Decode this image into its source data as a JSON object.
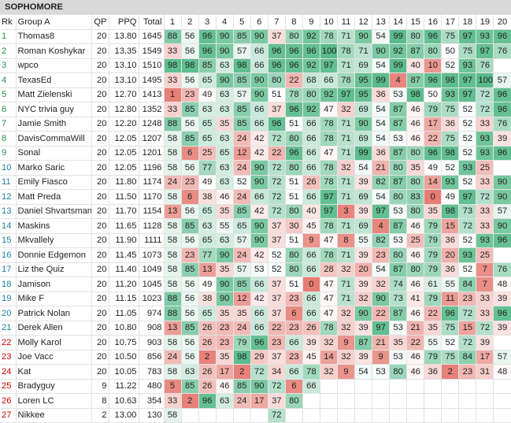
{
  "title": "SOPHOMORE",
  "headers": {
    "rk": "Rk",
    "group": "Group A",
    "qp": "QP",
    "ppq": "PPQ",
    "total": "Total",
    "questions": [
      "1",
      "2",
      "3",
      "4",
      "5",
      "6",
      "7",
      "8",
      "9",
      "10",
      "11",
      "12",
      "13",
      "14",
      "15",
      "16",
      "17",
      "18",
      "19",
      "20"
    ]
  },
  "rows": [
    {
      "rk": "1",
      "name": "Thomas8",
      "qp": "20",
      "ppq": "13.80",
      "total": "1645",
      "s": [
        "88",
        "56",
        "96",
        "90",
        "85",
        "90",
        "37",
        "80",
        "92",
        "78",
        "71",
        "90",
        "54",
        "99",
        "80",
        "96",
        "75",
        "97",
        "93",
        "96"
      ]
    },
    {
      "rk": "2",
      "name": "Roman Koshykar",
      "qp": "20",
      "ppq": "13.35",
      "total": "1549",
      "s": [
        "33",
        "56",
        "96",
        "90",
        "57",
        "66",
        "96",
        "96",
        "96",
        "100",
        "78",
        "71",
        "90",
        "92",
        "87",
        "80",
        "50",
        "75",
        "97",
        "76"
      ]
    },
    {
      "rk": "3",
      "name": "wpco",
      "qp": "20",
      "ppq": "13.10",
      "total": "1510",
      "s": [
        "98",
        "98",
        "85",
        "63",
        "98",
        "66",
        "96",
        "96",
        "92",
        "97",
        "71",
        "69",
        "54",
        "99",
        "40",
        "10",
        "52",
        "93",
        "76",
        ""
      ]
    },
    {
      "rk": "4",
      "name": "TexasEd",
      "qp": "20",
      "ppq": "13.10",
      "total": "1495",
      "s": [
        "33",
        "56",
        "65",
        "90",
        "85",
        "90",
        "80",
        "22",
        "68",
        "66",
        "78",
        "95",
        "99",
        "4",
        "87",
        "96",
        "98",
        "97",
        "100",
        "57"
      ]
    },
    {
      "rk": "5",
      "name": "Matt Zielenski",
      "qp": "20",
      "ppq": "12.70",
      "total": "1413",
      "s": [
        "1",
        "23",
        "49",
        "63",
        "57",
        "90",
        "51",
        "78",
        "80",
        "92",
        "97",
        "95",
        "36",
        "53",
        "98",
        "50",
        "93",
        "97",
        "72",
        "96"
      ]
    },
    {
      "rk": "6",
      "name": "NYC trivia guy",
      "qp": "20",
      "ppq": "12.80",
      "total": "1352",
      "s": [
        "33",
        "85",
        "63",
        "63",
        "85",
        "66",
        "37",
        "96",
        "92",
        "47",
        "32",
        "69",
        "54",
        "87",
        "46",
        "79",
        "75",
        "52",
        "72",
        "96"
      ]
    },
    {
      "rk": "7",
      "name": "Jamie Smith",
      "qp": "20",
      "ppq": "12.20",
      "total": "1248",
      "s": [
        "88",
        "56",
        "65",
        "35",
        "85",
        "66",
        "96",
        "51",
        "66",
        "78",
        "71",
        "90",
        "54",
        "87",
        "46",
        "17",
        "36",
        "52",
        "33",
        "76"
      ]
    },
    {
      "rk": "8",
      "name": "DavisCommaWill",
      "qp": "20",
      "ppq": "12.05",
      "total": "1207",
      "s": [
        "58",
        "85",
        "65",
        "63",
        "24",
        "42",
        "72",
        "80",
        "66",
        "78",
        "71",
        "69",
        "54",
        "53",
        "46",
        "22",
        "75",
        "52",
        "93",
        "39"
      ]
    },
    {
      "rk": "9",
      "name": "Sonal",
      "qp": "20",
      "ppq": "12.05",
      "total": "1201",
      "s": [
        "58",
        "6",
        "25",
        "65",
        "12",
        "42",
        "22",
        "96",
        "66",
        "47",
        "71",
        "99",
        "36",
        "87",
        "80",
        "96",
        "98",
        "52",
        "93",
        "96"
      ]
    },
    {
      "rk": "10",
      "name": "Marko Saric",
      "qp": "20",
      "ppq": "12.05",
      "total": "1196",
      "s": [
        "58",
        "56",
        "77",
        "63",
        "24",
        "90",
        "72",
        "80",
        "66",
        "78",
        "32",
        "54",
        "21",
        "80",
        "35",
        "49",
        "52",
        "93",
        "25",
        ""
      ]
    },
    {
      "rk": "11",
      "name": "Emily Fiasco",
      "qp": "20",
      "ppq": "11.80",
      "total": "1174",
      "s": [
        "24",
        "23",
        "49",
        "63",
        "52",
        "90",
        "72",
        "51",
        "26",
        "78",
        "71",
        "39",
        "82",
        "87",
        "80",
        "14",
        "93",
        "52",
        "33",
        "90"
      ]
    },
    {
      "rk": "12",
      "name": "Matt Preda",
      "qp": "20",
      "ppq": "11.50",
      "total": "1170",
      "s": [
        "58",
        "6",
        "38",
        "46",
        "24",
        "66",
        "72",
        "51",
        "66",
        "97",
        "71",
        "69",
        "54",
        "80",
        "83",
        "0",
        "49",
        "97",
        "72",
        "90"
      ]
    },
    {
      "rk": "13",
      "name": "Daniel Shvartsman",
      "qp": "20",
      "ppq": "11.70",
      "total": "1154",
      "s": [
        "13",
        "56",
        "65",
        "35",
        "85",
        "42",
        "72",
        "80",
        "40",
        "97",
        "3",
        "39",
        "97",
        "53",
        "80",
        "35",
        "98",
        "73",
        "33",
        "57"
      ]
    },
    {
      "rk": "14",
      "name": "Maskins",
      "qp": "20",
      "ppq": "11.65",
      "total": "1128",
      "s": [
        "58",
        "85",
        "63",
        "55",
        "65",
        "90",
        "37",
        "30",
        "45",
        "78",
        "71",
        "69",
        "4",
        "87",
        "46",
        "79",
        "15",
        "72",
        "33",
        "90"
      ]
    },
    {
      "rk": "15",
      "name": "Mkvallely",
      "qp": "20",
      "ppq": "11.90",
      "total": "1111",
      "s": [
        "58",
        "56",
        "65",
        "63",
        "57",
        "90",
        "37",
        "51",
        "9",
        "47",
        "8",
        "55",
        "82",
        "53",
        "25",
        "79",
        "36",
        "52",
        "93",
        "96"
      ]
    },
    {
      "rk": "16",
      "name": "Donnie Edgemon",
      "qp": "20",
      "ppq": "11.45",
      "total": "1073",
      "s": [
        "58",
        "23",
        "77",
        "90",
        "24",
        "42",
        "52",
        "80",
        "66",
        "78",
        "71",
        "39",
        "23",
        "80",
        "46",
        "79",
        "20",
        "93",
        "25",
        ""
      ]
    },
    {
      "rk": "17",
      "name": "Liz the Quiz",
      "qp": "20",
      "ppq": "11.40",
      "total": "1049",
      "s": [
        "58",
        "85",
        "13",
        "35",
        "57",
        "53",
        "52",
        "80",
        "66",
        "28",
        "32",
        "20",
        "54",
        "87",
        "80",
        "79",
        "36",
        "52",
        "7",
        "76"
      ]
    },
    {
      "rk": "18",
      "name": "Jamison",
      "qp": "20",
      "ppq": "11.20",
      "total": "1045",
      "s": [
        "58",
        "56",
        "49",
        "90",
        "85",
        "66",
        "37",
        "51",
        "0",
        "47",
        "71",
        "39",
        "32",
        "74",
        "46",
        "61",
        "55",
        "84",
        "7",
        "48"
      ]
    },
    {
      "rk": "19",
      "name": "Mike F",
      "qp": "20",
      "ppq": "11.15",
      "total": "1023",
      "s": [
        "88",
        "56",
        "38",
        "90",
        "12",
        "42",
        "37",
        "23",
        "66",
        "47",
        "71",
        "32",
        "90",
        "73",
        "41",
        "79",
        "11",
        "23",
        "33",
        "39"
      ]
    },
    {
      "rk": "20",
      "name": "Patrick Nolan",
      "qp": "20",
      "ppq": "11.05",
      "total": "974",
      "s": [
        "88",
        "56",
        "65",
        "35",
        "35",
        "66",
        "37",
        "6",
        "66",
        "47",
        "32",
        "90",
        "22",
        "87",
        "46",
        "22",
        "96",
        "72",
        "33",
        "96"
      ]
    },
    {
      "rk": "21",
      "name": "Derek Allen",
      "qp": "20",
      "ppq": "10.80",
      "total": "908",
      "s": [
        "13",
        "85",
        "26",
        "23",
        "24",
        "66",
        "22",
        "23",
        "26",
        "78",
        "32",
        "39",
        "97",
        "53",
        "21",
        "35",
        "75",
        "15",
        "72",
        "39"
      ]
    },
    {
      "rk": "22",
      "name": "Molly Karol",
      "qp": "20",
      "ppq": "10.75",
      "total": "903",
      "s": [
        "58",
        "56",
        "26",
        "23",
        "79",
        "96",
        "23",
        "66",
        "39",
        "32",
        "9",
        "87",
        "21",
        "35",
        "22",
        "55",
        "52",
        "72",
        "39",
        ""
      ]
    },
    {
      "rk": "23",
      "name": "Joe Vacc",
      "qp": "20",
      "ppq": "10.50",
      "total": "856",
      "s": [
        "24",
        "56",
        "2",
        "35",
        "98",
        "29",
        "37",
        "23",
        "45",
        "14",
        "32",
        "39",
        "9",
        "53",
        "46",
        "79",
        "75",
        "84",
        "17",
        "57"
      ]
    },
    {
      "rk": "24",
      "name": "Kat",
      "qp": "20",
      "ppq": "10.05",
      "total": "783",
      "s": [
        "58",
        "63",
        "26",
        "17",
        "2",
        "72",
        "34",
        "66",
        "78",
        "32",
        "9",
        "54",
        "53",
        "80",
        "46",
        "36",
        "2",
        "23",
        "31",
        "48"
      ]
    },
    {
      "rk": "25",
      "name": "Bradyguy",
      "qp": "9",
      "ppq": "11.22",
      "total": "480",
      "s": [
        "5",
        "85",
        "26",
        "46",
        "85",
        "90",
        "72",
        "6",
        "66",
        "",
        "",
        "",
        "",
        "",
        "",
        "",
        "",
        "",
        "",
        ""
      ]
    },
    {
      "rk": "26",
      "name": "Loren LC",
      "qp": "8",
      "ppq": "10.63",
      "total": "354",
      "s": [
        "33",
        "2",
        "96",
        "63",
        "24",
        "17",
        "37",
        "80",
        "",
        "",
        "",
        "",
        "",
        "",
        "",
        "",
        "",
        "",
        "",
        ""
      ]
    },
    {
      "rk": "27",
      "name": "Nikkee",
      "qp": "2",
      "ppq": "13.00",
      "total": "130",
      "s": [
        "58",
        "",
        "",
        "",
        "",
        "",
        "72",
        "",
        "",
        "",
        "",
        "",
        "",
        "",
        "",
        "",
        "",
        "",
        "",
        ""
      ]
    }
  ]
}
